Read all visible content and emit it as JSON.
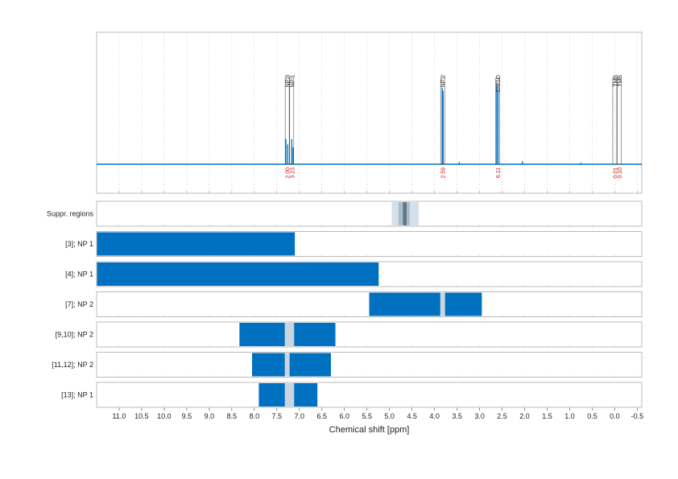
{
  "chart_data": {
    "type": "line",
    "xlabel": "Chemical shift [ppm]",
    "xlim": [
      11.5,
      -0.6
    ],
    "x_ticks": [
      11.0,
      10.5,
      10.0,
      9.5,
      9.0,
      8.5,
      8.0,
      7.5,
      7.0,
      6.5,
      6.0,
      5.5,
      5.0,
      4.5,
      4.0,
      3.5,
      3.0,
      2.5,
      2.0,
      1.5,
      1.0,
      0.5,
      0.0,
      -0.5
    ],
    "x_tick_labels": [
      "11.0",
      "10.5",
      "10.0",
      "9.5",
      "9.0",
      "8.5",
      "8.0",
      "7.5",
      "7.0",
      "6.5",
      "6.0",
      "5.5",
      "5.0",
      "4.5",
      "4.0",
      "3.5",
      "3.0",
      "2.5",
      "2.0",
      "1.5",
      "1.0",
      "0.5",
      "0.0",
      "-0.5"
    ],
    "grid": true,
    "spectrum": {
      "baseline_peaks": [
        {
          "ppm": 7.3,
          "height": 0.33
        },
        {
          "ppm": 7.26,
          "height": 0.26
        },
        {
          "ppm": 7.17,
          "height": 0.33
        },
        {
          "ppm": 7.14,
          "height": 0.22
        },
        {
          "ppm": 3.83,
          "height": 1.0
        },
        {
          "ppm": 3.81,
          "height": 0.96
        },
        {
          "ppm": 2.62,
          "height": 1.05
        },
        {
          "ppm": 2.59,
          "height": 0.98
        },
        {
          "ppm": 3.45,
          "height": 0.03
        },
        {
          "ppm": 2.05,
          "height": 0.04
        },
        {
          "ppm": 0.75,
          "height": 0.02
        }
      ]
    },
    "peak_annotations": [
      {
        "label": "NP 3",
        "ppm": 7.27,
        "integral": "2.00"
      },
      {
        "label": "NP 1",
        "ppm": 7.17,
        "integral": "3.23"
      },
      {
        "label": "NP 2",
        "ppm": 3.82,
        "integral": "2.59"
      },
      {
        "label": "DMSO",
        "ppm": 2.6,
        "integral": "6.11"
      },
      {
        "label": "TMS",
        "ppm": 0.0,
        "integral": "0.01"
      },
      {
        "label": "TMS",
        "ppm": -0.1,
        "integral": "0.10"
      }
    ],
    "rows": [
      {
        "label": "Suppr. regions",
        "type": "suppr",
        "ranges": [
          [
            4.95,
            4.35
          ],
          [
            4.8,
            4.55
          ]
        ],
        "core": [
          4.7,
          4.62
        ]
      },
      {
        "label": "[3]; NP 1",
        "type": "range",
        "bar": [
          11.5,
          7.1
        ],
        "markers": []
      },
      {
        "label": "[4]; NP 1",
        "type": "range",
        "bar": [
          11.5,
          5.24
        ],
        "markers": []
      },
      {
        "label": "[7]; NP 2",
        "type": "range",
        "bar": [
          5.45,
          2.95
        ],
        "markers": [
          3.82
        ]
      },
      {
        "label": "[9,10]; NP 2",
        "type": "range",
        "bar": [
          8.33,
          6.2
        ],
        "markers": [
          7.27,
          7.17
        ]
      },
      {
        "label": "[11,12]; NP 2",
        "type": "range",
        "bar": [
          8.05,
          6.3
        ],
        "markers": [
          7.27
        ]
      },
      {
        "label": "[13]; NP 1",
        "type": "range",
        "bar": [
          7.9,
          6.6
        ],
        "markers": [
          7.27,
          7.17
        ]
      }
    ]
  }
}
